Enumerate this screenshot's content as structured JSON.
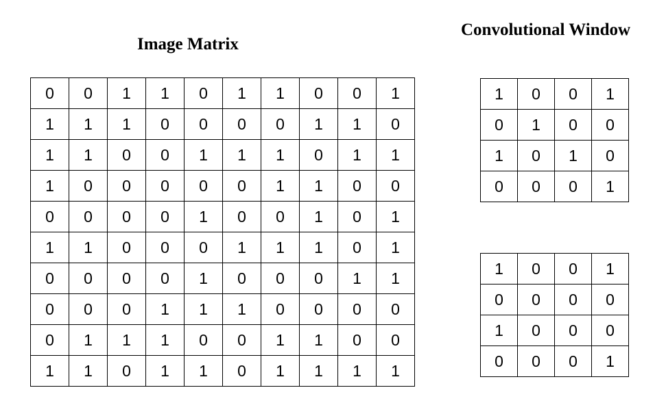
{
  "titles": {
    "image_matrix": "Image Matrix",
    "convolutional_window": "Convolutional Window"
  },
  "image_matrix": [
    [
      "0",
      "0",
      "1",
      "1",
      "0",
      "1",
      "1",
      "0",
      "0",
      "1"
    ],
    [
      "1",
      "1",
      "1",
      "0",
      "0",
      "0",
      "0",
      "1",
      "1",
      "0"
    ],
    [
      "1",
      "1",
      "0",
      "0",
      "1",
      "1",
      "1",
      "0",
      "1",
      "1"
    ],
    [
      "1",
      "0",
      "0",
      "0",
      "0",
      "0",
      "1",
      "1",
      "0",
      "0"
    ],
    [
      "0",
      "0",
      "0",
      "0",
      "1",
      "0",
      "0",
      "1",
      "0",
      "1"
    ],
    [
      "1",
      "1",
      "0",
      "0",
      "0",
      "1",
      "1",
      "1",
      "0",
      "1"
    ],
    [
      "0",
      "0",
      "0",
      "0",
      "1",
      "0",
      "0",
      "0",
      "1",
      "1"
    ],
    [
      "0",
      "0",
      "0",
      "1",
      "1",
      "1",
      "0",
      "0",
      "0",
      "0"
    ],
    [
      "0",
      "1",
      "1",
      "1",
      "0",
      "0",
      "1",
      "1",
      "0",
      "0"
    ],
    [
      "1",
      "1",
      "0",
      "1",
      "1",
      "0",
      "1",
      "1",
      "1",
      "1"
    ]
  ],
  "convolutional_windows": [
    [
      [
        "1",
        "0",
        "0",
        "1"
      ],
      [
        "0",
        "1",
        "0",
        "0"
      ],
      [
        "1",
        "0",
        "1",
        "0"
      ],
      [
        "0",
        "0",
        "0",
        "1"
      ]
    ],
    [
      [
        "1",
        "0",
        "0",
        "1"
      ],
      [
        "0",
        "0",
        "0",
        "0"
      ],
      [
        "1",
        "0",
        "0",
        "0"
      ],
      [
        "0",
        "0",
        "0",
        "1"
      ]
    ]
  ]
}
